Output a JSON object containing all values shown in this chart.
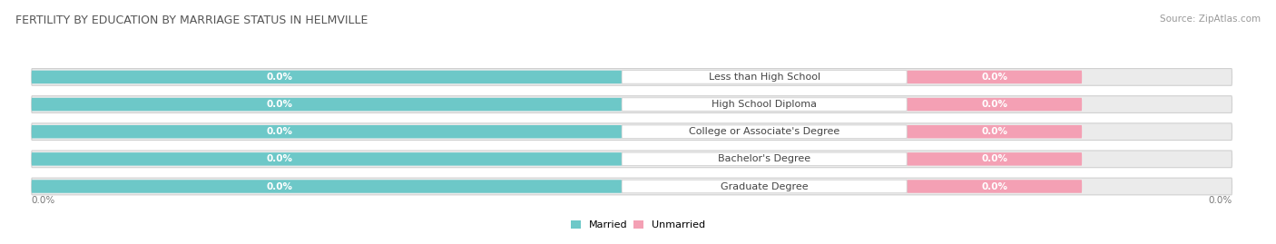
{
  "title": "FERTILITY BY EDUCATION BY MARRIAGE STATUS IN HELMVILLE",
  "source": "Source: ZipAtlas.com",
  "categories": [
    "Less than High School",
    "High School Diploma",
    "College or Associate's Degree",
    "Bachelor's Degree",
    "Graduate Degree"
  ],
  "married_values": [
    0.0,
    0.0,
    0.0,
    0.0,
    0.0
  ],
  "unmarried_values": [
    0.0,
    0.0,
    0.0,
    0.0,
    0.0
  ],
  "married_color": "#6dc8c8",
  "unmarried_color": "#f4a0b4",
  "row_bg_color": "#ebebeb",
  "row_border_color": "#d0d0d0",
  "married_label": "Married",
  "unmarried_label": "Unmarried",
  "title_fontsize": 9,
  "source_fontsize": 7.5,
  "value_fontsize": 7.5,
  "cat_fontsize": 8,
  "legend_fontsize": 8,
  "tick_fontsize": 7.5,
  "tick_label": "0.0%",
  "background_color": "#ffffff",
  "text_color": "#555555",
  "source_color": "#999999",
  "tick_color": "#777777",
  "value_text_color": "#ffffff",
  "cat_text_color": "#444444"
}
